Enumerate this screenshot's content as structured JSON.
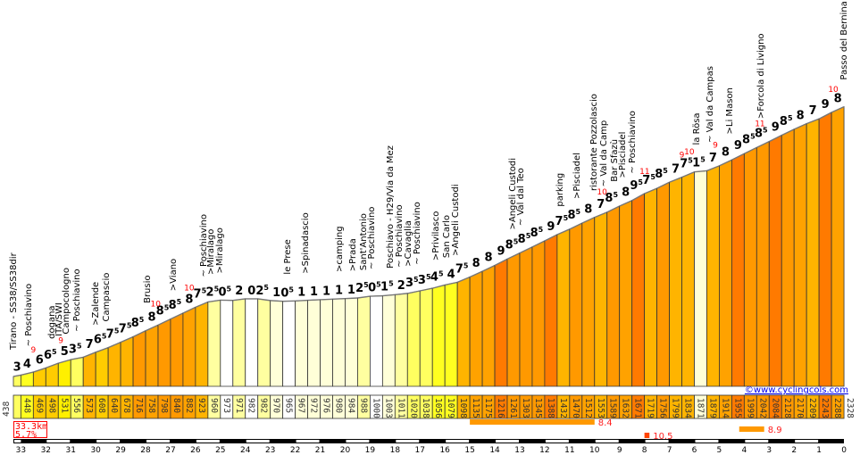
{
  "chart_data": {
    "type": "area",
    "title": "",
    "x_unit": "km to summit",
    "xlim": [
      33.3,
      0
    ],
    "summary": {
      "distance": "33.3km",
      "avg_grade": "5.7%"
    },
    "copyright": "©www.cyclingcols.com",
    "segment_km": [
      33.3,
      33.0,
      32.5,
      32.0,
      31.5,
      31.0,
      30.5,
      30.0,
      29.5,
      29.0,
      28.5,
      28.0,
      27.5,
      27.0,
      26.5,
      26.0,
      25.5,
      25.0,
      24.5,
      24.0,
      23.5,
      23.0,
      22.5,
      22.0,
      21.5,
      21.0,
      20.5,
      20.0,
      19.5,
      19.0,
      18.5,
      18.0,
      17.5,
      17.0,
      16.5,
      16.0,
      15.5,
      15.0,
      14.5,
      14.0,
      13.5,
      13.0,
      12.5,
      12.0,
      11.5,
      11.0,
      10.5,
      10.0,
      9.5,
      9.0,
      8.5,
      8.0,
      7.5,
      7.0,
      6.5,
      6.0,
      5.5,
      5.0,
      4.5,
      4.0,
      3.5,
      3.0,
      2.5,
      2.0,
      1.5,
      1.0,
      0.5,
      0.0
    ],
    "elevations": [
      438,
      448,
      469,
      498,
      531,
      556,
      573,
      608,
      640,
      678,
      716,
      758,
      798,
      840,
      882,
      923,
      960,
      973,
      971,
      982,
      982,
      970,
      965,
      967,
      972,
      976,
      980,
      984,
      988,
      1000,
      1003,
      1011,
      1020,
      1038,
      1056,
      1079,
      1098,
      1135,
      1175,
      1216,
      1261,
      1303,
      1345,
      1388,
      1432,
      1470,
      1512,
      1553,
      1589,
      1632,
      1671,
      1719,
      1756,
      1799,
      1834,
      1871,
      1879,
      1914,
      1955,
      1999,
      2042,
      2084,
      2128,
      2170,
      2209,
      2243,
      2288,
      2328
    ],
    "grades": [
      "3",
      "4",
      "6",
      "6.5",
      "5",
      "3.5",
      "7",
      "6.5",
      "7.5",
      "7.5",
      "8.5",
      "8",
      "8.5",
      "8.5",
      "8",
      "7.5",
      "2.5",
      "0.5",
      "2",
      "0",
      "2.5",
      "1",
      "0.5",
      "1",
      "1",
      "1",
      "1",
      "1",
      "2.5",
      "0.5",
      "1.5",
      "2",
      "3.5",
      "3.5",
      "4.5",
      "4",
      "7.5",
      "8",
      "8",
      "9",
      "8.5",
      "8.5",
      "8.5",
      "9",
      "7.5",
      "8.5",
      "8",
      "7",
      "8.5",
      "8",
      "9.5",
      "7.5",
      "8.5",
      "7",
      "7.5",
      "1.5",
      "7",
      "8",
      "9",
      "8.5",
      "8.5",
      "9",
      "8.5",
      "8",
      "7",
      "9",
      "8"
    ],
    "max_grades": [
      {
        "km": 32.5,
        "value": "9"
      },
      {
        "km": 31.4,
        "value": "9"
      },
      {
        "km": 27.6,
        "value": "10"
      },
      {
        "km": 26.25,
        "value": "10"
      },
      {
        "km": 9.7,
        "value": "10"
      },
      {
        "km": 7.99,
        "value": "11"
      },
      {
        "km": 6.5,
        "value": "9"
      },
      {
        "km": 6.2,
        "value": "10"
      },
      {
        "km": 5.16,
        "value": "9"
      },
      {
        "km": 3.37,
        "value": "11"
      },
      {
        "km": 0.43,
        "value": "10"
      }
    ],
    "places": [
      {
        "km": 33.3,
        "label": "Tirano - SS38/SS38dir"
      },
      {
        "km": 32.69,
        "label": "~ Poschiavino"
      },
      {
        "km": 31.76,
        "label": "dogana"
      },
      {
        "km": 31.47,
        "label": "ITA/SWI"
      },
      {
        "km": 31.19,
        "label": "Campocologno"
      },
      {
        "km": 30.76,
        "label": "~ Poschiavino"
      },
      {
        "km": 30.01,
        "label": ">Zalende"
      },
      {
        "km": 29.58,
        "label": "Campascio"
      },
      {
        "km": 27.93,
        "label": "Brusio"
      },
      {
        "km": 26.89,
        "label": ">Viano"
      },
      {
        "km": 25.67,
        "label": "~ Poschiavino"
      },
      {
        "km": 25.39,
        "label": ">Miralago"
      },
      {
        "km": 25.03,
        "label": ">Miralago"
      },
      {
        "km": 22.31,
        "label": "le Prese"
      },
      {
        "km": 21.59,
        "label": ">Spinadascio"
      },
      {
        "km": 20.23,
        "label": ">camping"
      },
      {
        "km": 19.69,
        "label": ">Prada"
      },
      {
        "km": 19.26,
        "label": "Sant'Antonio"
      },
      {
        "km": 18.94,
        "label": "~ Poschiavino"
      },
      {
        "km": 18.19,
        "label": "Poschiavo - H29/Via da Mez"
      },
      {
        "km": 17.83,
        "label": "~ Poschiavino"
      },
      {
        "km": 17.47,
        "label": ">Cavaglia"
      },
      {
        "km": 17.12,
        "label": "~ Poschiavino"
      },
      {
        "km": 16.37,
        "label": ">Privilasco"
      },
      {
        "km": 15.94,
        "label": "San Carlo"
      },
      {
        "km": 15.58,
        "label": ">Angeli Custodi"
      },
      {
        "km": 13.29,
        "label": ">Angeli Custodi"
      },
      {
        "km": 12.96,
        "label": "~ Val dal Teo"
      },
      {
        "km": 11.39,
        "label": "parking"
      },
      {
        "km": 10.71,
        "label": ">Pisciadel"
      },
      {
        "km": 10.03,
        "label": "ristorante Pozzolascio"
      },
      {
        "km": 9.63,
        "label": "~ Val da Camp"
      },
      {
        "km": 9.2,
        "label": "Bar Sfazù"
      },
      {
        "km": 8.88,
        "label": ">Pisciadel"
      },
      {
        "km": 8.49,
        "label": "~ Poschiavino"
      },
      {
        "km": 5.91,
        "label": "la Rösa"
      },
      {
        "km": 5.37,
        "label": "~ Val da Campas"
      },
      {
        "km": 4.59,
        "label": ">Li Mason"
      },
      {
        "km": 3.33,
        "label": ">Forcola di Livigno"
      },
      {
        "km": 0.0,
        "label": "Passo del Bernina"
      }
    ],
    "steepest": [
      {
        "from_km": 15.0,
        "to_km": 10.0,
        "grade": "8.4",
        "color": "#ff9900"
      },
      {
        "from_km": 4.2,
        "to_km": 3.2,
        "grade": "8.9",
        "color": "#ff9900"
      },
      {
        "from_km": 8.0,
        "to_km": 7.8,
        "grade": "10.5",
        "color": "#ff4400"
      }
    ],
    "km_ticks": [
      33,
      32,
      31,
      30,
      29,
      28,
      27,
      26,
      25,
      24,
      23,
      22,
      21,
      20,
      19,
      18,
      17,
      16,
      15,
      14,
      13,
      12,
      11,
      10,
      9,
      8,
      7,
      6,
      5,
      4,
      3,
      2,
      1,
      0
    ],
    "grade_colors": [
      {
        "max": 0.5,
        "color": "#ffffff"
      },
      {
        "max": 1.5,
        "color": "#ffffd8"
      },
      {
        "max": 2.5,
        "color": "#ffffa0"
      },
      {
        "max": 3.5,
        "color": "#ffff60"
      },
      {
        "max": 4.5,
        "color": "#ffff20"
      },
      {
        "max": 5.5,
        "color": "#fff000"
      },
      {
        "max": 6.5,
        "color": "#ffcc00"
      },
      {
        "max": 7.5,
        "color": "#ffb400"
      },
      {
        "max": 8.0,
        "color": "#ffa200"
      },
      {
        "max": 8.5,
        "color": "#ff9900"
      },
      {
        "max": 9.5,
        "color": "#ff7a00"
      },
      {
        "max": 99,
        "color": "#ff5500"
      }
    ]
  }
}
